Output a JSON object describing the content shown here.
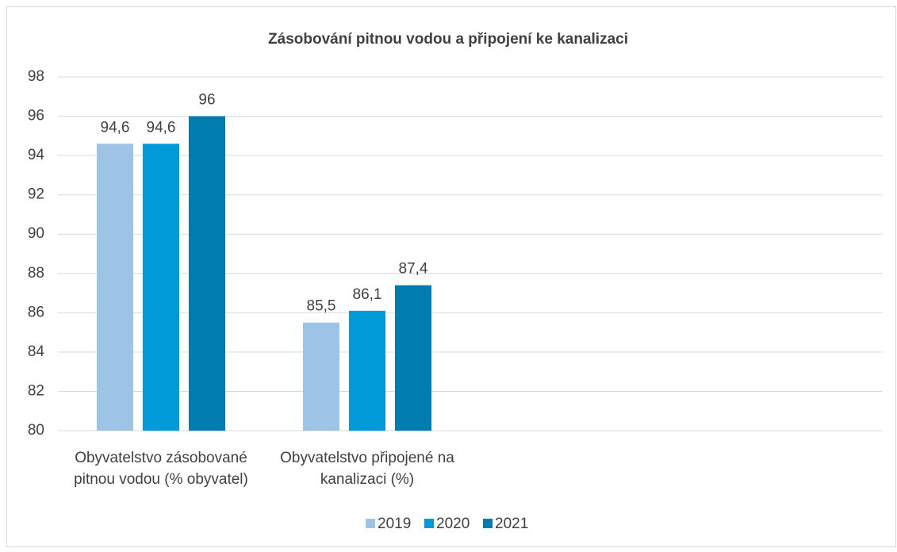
{
  "chart_data": {
    "type": "bar",
    "title": "Zásobování pitnou vodou a připojení ke kanalizaci",
    "categories": [
      "Obyvatelstvo zásobované pitnou vodou (% obyvatel)",
      "Obyvatelstvo připojené na kanalizaci (%)",
      null,
      null
    ],
    "series": [
      {
        "name": "2019",
        "color": "#9dc3e6",
        "values": [
          94.6,
          85.5,
          null,
          null
        ],
        "value_labels": [
          "94,6",
          "85,5",
          null,
          null
        ]
      },
      {
        "name": "2020",
        "color": "#009ad9",
        "values": [
          94.6,
          86.1,
          null,
          null
        ],
        "value_labels": [
          "94,6",
          "86,1",
          null,
          null
        ]
      },
      {
        "name": "2021",
        "color": "#007cb0",
        "values": [
          96,
          87.4,
          null,
          null
        ],
        "value_labels": [
          "96",
          "87,4",
          null,
          null
        ]
      }
    ],
    "ylim": [
      80,
      98
    ],
    "yticks": [
      80,
      82,
      84,
      86,
      88,
      90,
      92,
      94,
      96,
      98
    ],
    "grid": true,
    "legend": "bottom"
  }
}
